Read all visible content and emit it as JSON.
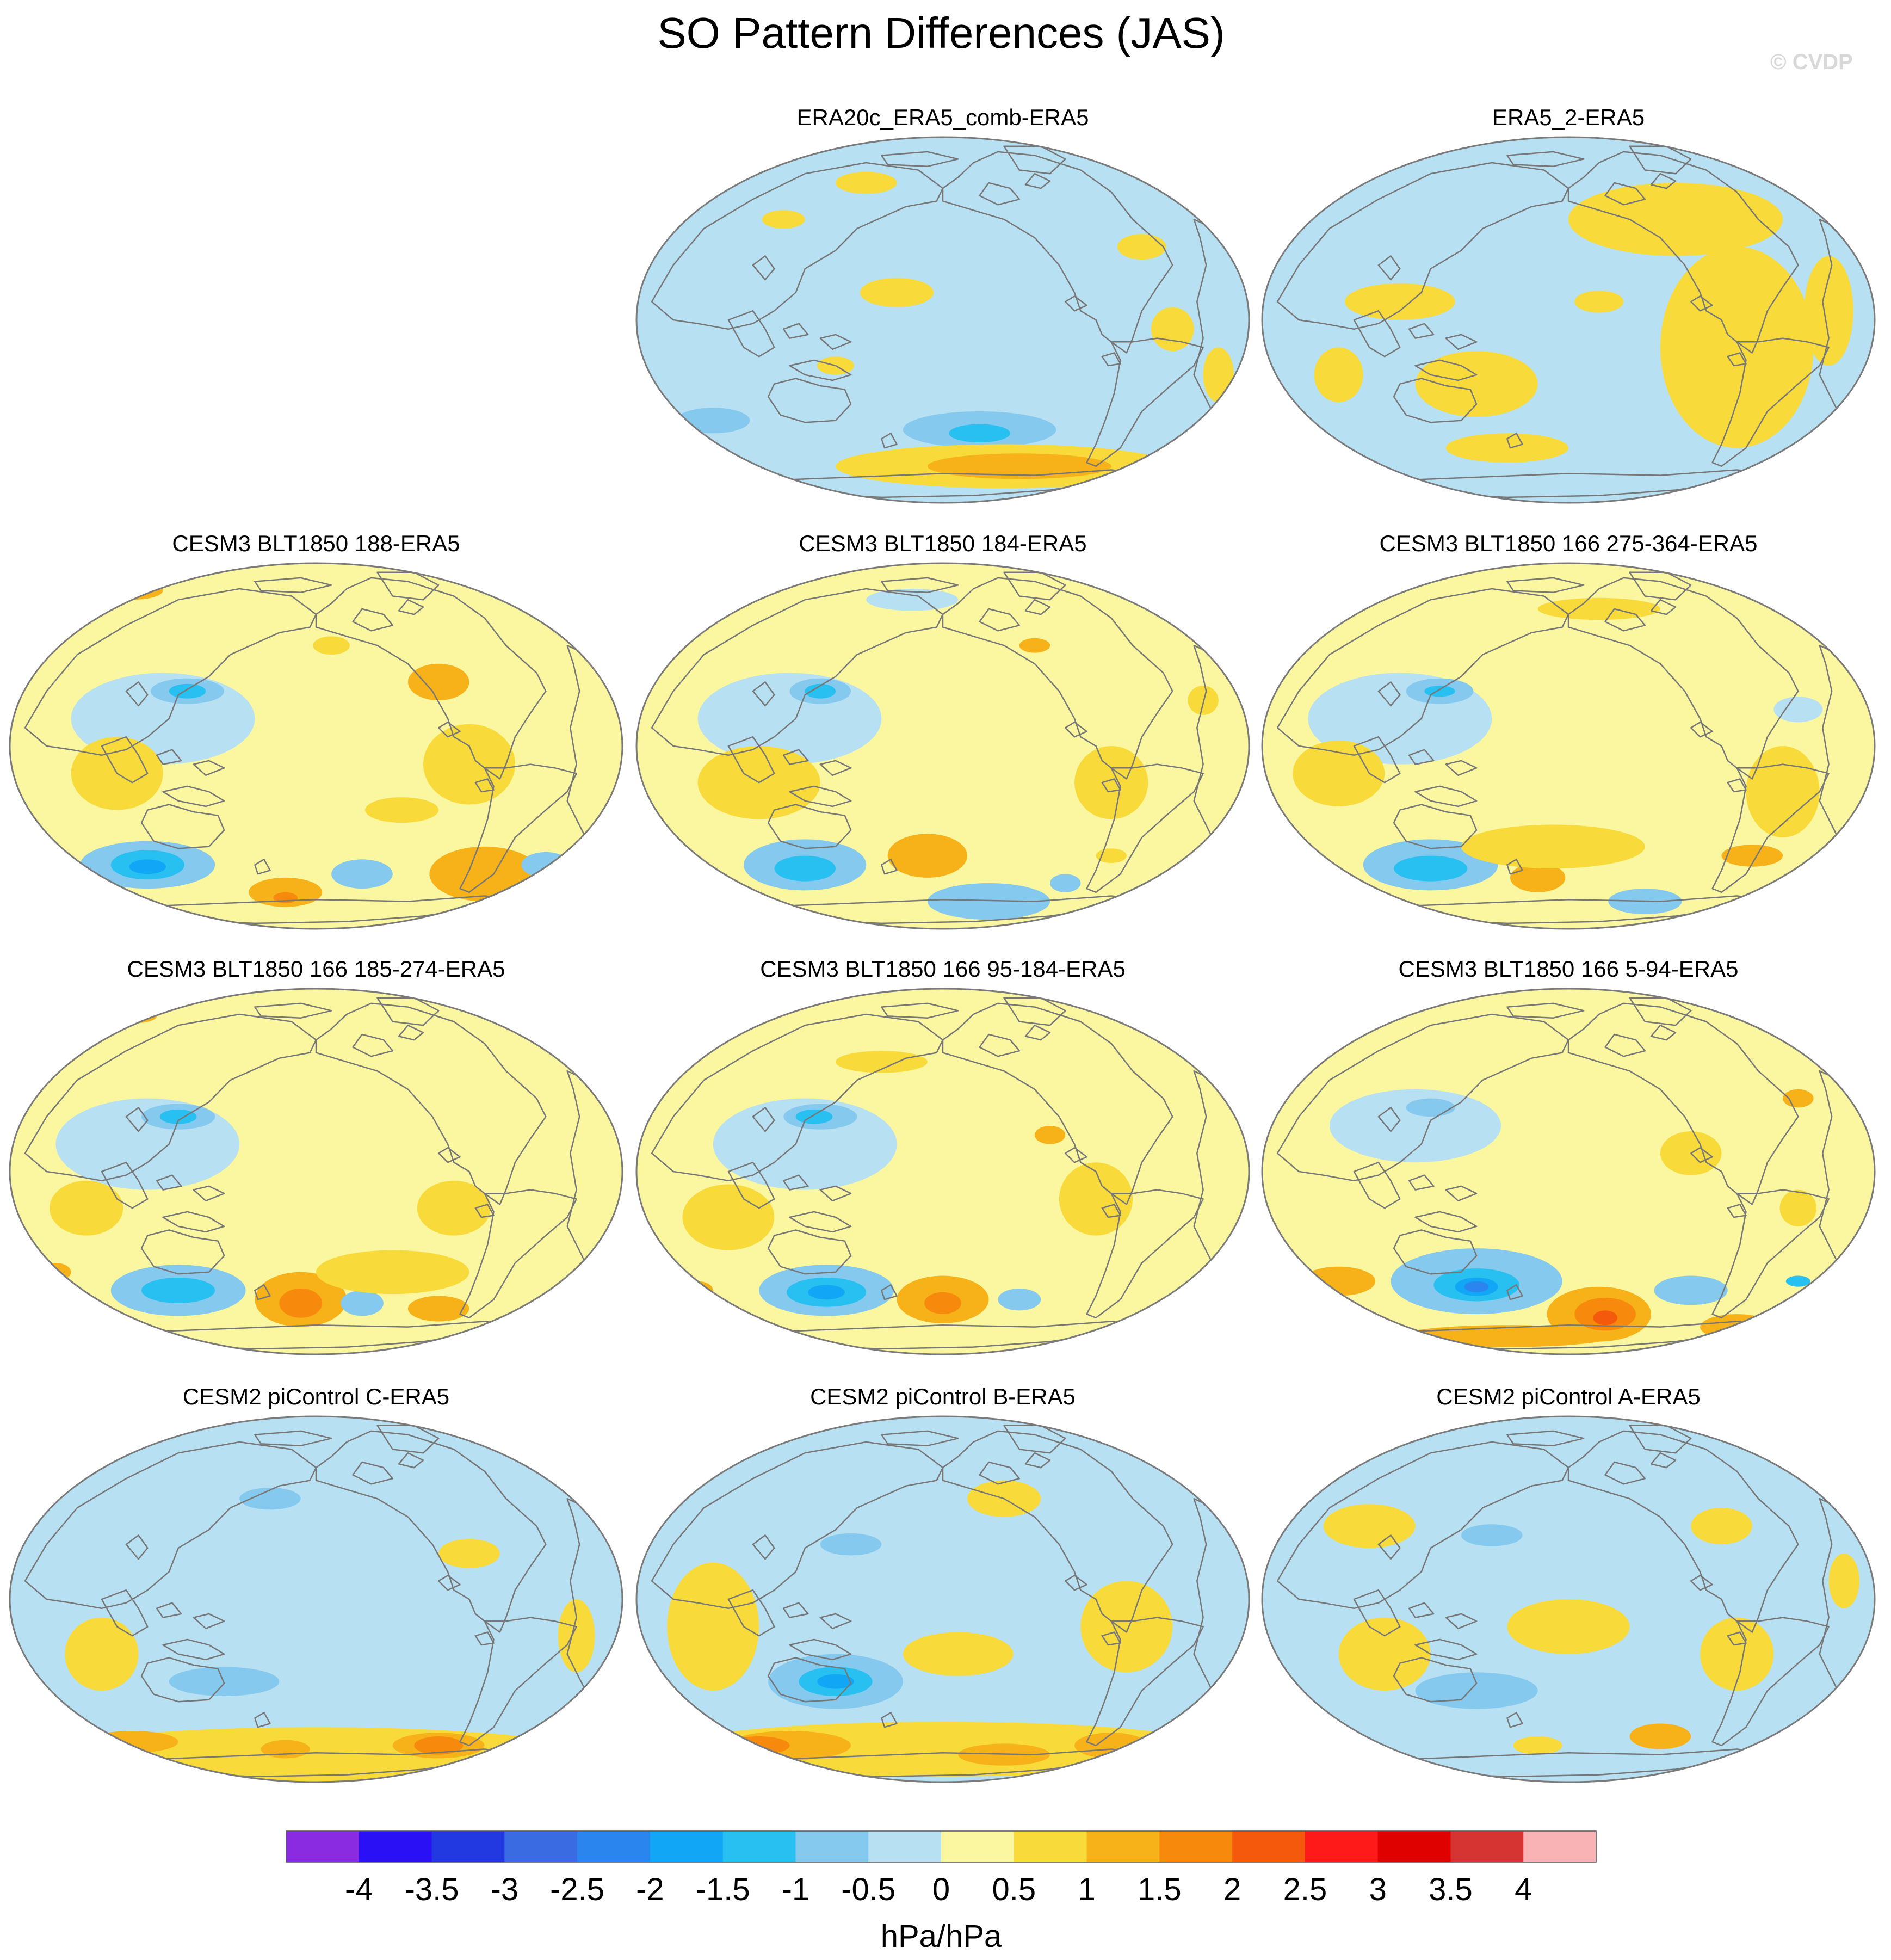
{
  "page_title": "SO Pattern Differences (JAS)",
  "copyright": "© CVDP",
  "chart_data": {
    "type": "heatmap",
    "title": "SO Pattern Differences (JAS)",
    "projection": "Robinson (Pacific-centered)",
    "colorbar": {
      "unit_label": "hPa/hPa",
      "tick_labels": [
        "-4",
        "-3.5",
        "-3",
        "-2.5",
        "-2",
        "-1.5",
        "-1",
        "-0.5",
        "0",
        "0.5",
        "1",
        "1.5",
        "2",
        "2.5",
        "3",
        "3.5",
        "4"
      ],
      "levels": [
        -4,
        -3.5,
        -3,
        -2.5,
        -2,
        -1.5,
        -1,
        -0.5,
        0,
        0.5,
        1,
        1.5,
        2,
        2.5,
        3,
        3.5,
        4
      ],
      "colors": [
        "#8a2be2",
        "#2a10f5",
        "#2238e0",
        "#3b6be3",
        "#2a86ee",
        "#11a6f6",
        "#27c0f0",
        "#86c9ee",
        "#b8e0f3",
        "#fbf6a0",
        "#f8db3a",
        "#f6b218",
        "#f78a0c",
        "#f55a0c",
        "#ff1a1a",
        "#df0000",
        "#d63333",
        "#f9b3b4"
      ]
    },
    "panels": [
      {
        "title": "ERA20c_ERA5_comb-ERA5",
        "min_value": -1.5,
        "max_value": 1.0
      },
      {
        "title": "ERA5_2-ERA5",
        "min_value": -0.5,
        "max_value": 0.5
      },
      {
        "title": "CESM3 BLT1850 188-ERA5",
        "min_value": -2.0,
        "max_value": 1.5
      },
      {
        "title": "CESM3 BLT1850 184-ERA5",
        "min_value": -2.0,
        "max_value": 1.0
      },
      {
        "title": "CESM3 BLT1850 166 275-364-ERA5",
        "min_value": -2.0,
        "max_value": 1.0
      },
      {
        "title": "CESM3 BLT1850 166 185-274-ERA5",
        "min_value": -2.0,
        "max_value": 1.5
      },
      {
        "title": "CESM3 BLT1850 166 95-184-ERA5",
        "min_value": -2.0,
        "max_value": 1.5
      },
      {
        "title": "CESM3 BLT1850 166 5-94-ERA5",
        "min_value": -2.5,
        "max_value": 2.0
      },
      {
        "title": "CESM2 piControl C-ERA5",
        "min_value": -1.0,
        "max_value": 1.5
      },
      {
        "title": "CESM2 piControl B-ERA5",
        "min_value": -2.0,
        "max_value": 1.5
      },
      {
        "title": "CESM2 piControl A-ERA5",
        "min_value": -1.0,
        "max_value": 1.0
      }
    ]
  }
}
